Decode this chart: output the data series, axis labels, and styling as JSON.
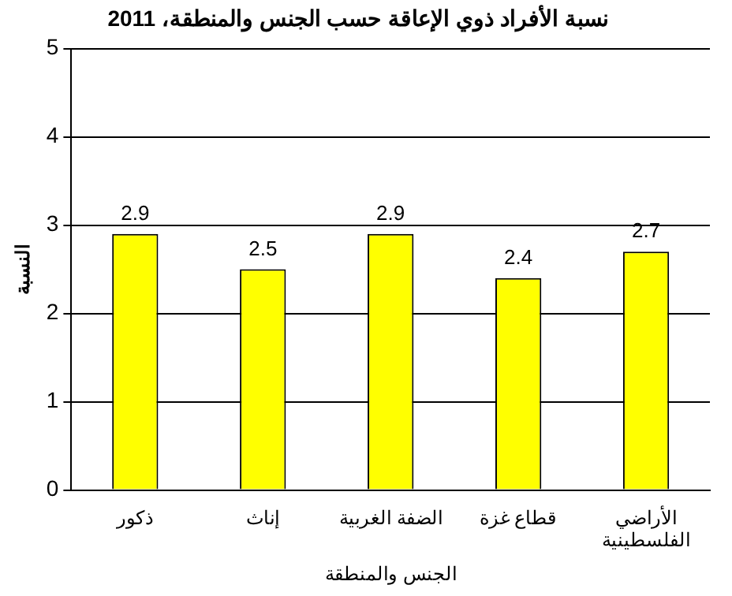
{
  "chart_data": {
    "type": "bar",
    "title": "نسبة الأفراد ذوي الإعاقة حسب الجنس والمنطقة، 2011",
    "xlabel": "الجنس والمنطقة",
    "ylabel": "النسبة",
    "categories": [
      "ذكور",
      "إناث",
      "الضفة الغربية",
      "قطاع غزة",
      "الأراضي الفلسطينية"
    ],
    "values": [
      2.9,
      2.5,
      2.9,
      2.4,
      2.7
    ],
    "color": "#ffff00",
    "ylim": [
      0,
      5
    ],
    "yticks": [
      0,
      1,
      2,
      3,
      4,
      5
    ],
    "grid": "y",
    "data_labels": true
  }
}
